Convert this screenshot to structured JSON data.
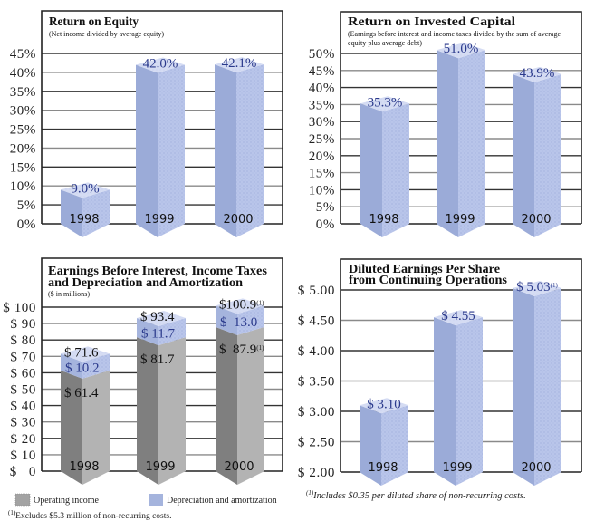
{
  "chart_data": [
    {
      "type": "bar",
      "title": [
        "Return on Equity"
      ],
      "subtitle": [
        "(Net income divided by average equity)"
      ],
      "xlabel": "",
      "ylabel": "",
      "categories": [
        "1998",
        "1999",
        "2000"
      ],
      "values": [
        9.0,
        42.0,
        42.1
      ],
      "value_labels": [
        "9.0%",
        "42.0%",
        "42.1%"
      ],
      "value_marks": [
        "",
        "",
        ""
      ],
      "ylim": [
        0,
        45
      ],
      "yticks": [
        0,
        5,
        10,
        15,
        20,
        25,
        30,
        35,
        40,
        45
      ],
      "ytick_labels": [
        "0%",
        "5%",
        "10%",
        "15%",
        "20%",
        "25%",
        "30%",
        "35%",
        "40%",
        "45%"
      ],
      "grid": true,
      "color": "#9babd8"
    },
    {
      "type": "bar",
      "title": [
        "Return on Invested Capital"
      ],
      "subtitle": [
        "(Earnings before interest and income taxes divided by the sum of average",
        "equity plus average debt)"
      ],
      "xlabel": "",
      "ylabel": "",
      "categories": [
        "1998",
        "1999",
        "2000"
      ],
      "values": [
        35.3,
        51.0,
        43.9
      ],
      "value_labels": [
        "35.3%",
        "51.0%",
        "43.9%"
      ],
      "value_marks": [
        "",
        "",
        ""
      ],
      "ylim": [
        0,
        50
      ],
      "yticks": [
        0,
        5,
        10,
        15,
        20,
        25,
        30,
        35,
        40,
        45,
        50
      ],
      "ytick_labels": [
        "0%",
        "5%",
        "10%",
        "15%",
        "20%",
        "25%",
        "30%",
        "35%",
        "40%",
        "45%",
        "50%"
      ],
      "grid": true,
      "color": "#9babd8"
    },
    {
      "type": "bar",
      "stacked": true,
      "title": [
        "Earnings Before Interest, Income Taxes",
        "and Depreciation and Amortization"
      ],
      "subtitle": [
        "($ in millions)"
      ],
      "xlabel": "",
      "ylabel": "",
      "categories": [
        "1998",
        "1999",
        "2000"
      ],
      "series": [
        {
          "name": "Operating income",
          "values": [
            61.4,
            81.7,
            87.9
          ],
          "labels": [
            "$ 61.4",
            "$ 81.7",
            "$  87.9"
          ],
          "marks": [
            "",
            "",
            "(1)"
          ],
          "color": "#a3a3a3"
        },
        {
          "name": "Depreciation and amortization",
          "values": [
            10.2,
            11.7,
            13.0
          ],
          "labels": [
            "$ 10.2",
            "$ 11.7",
            "$  13.0"
          ],
          "marks": [
            "",
            "",
            ""
          ],
          "color": "#a5b4dd"
        }
      ],
      "totals": [
        71.6,
        93.4,
        100.9
      ],
      "total_labels": [
        "$ 71.6",
        "$ 93.4",
        "$100.9"
      ],
      "total_marks": [
        "",
        "",
        "(1)"
      ],
      "ylim": [
        0,
        100
      ],
      "yticks": [
        0,
        10,
        20,
        30,
        40,
        50,
        60,
        70,
        80,
        90,
        100
      ],
      "ytick_labels": [
        "$   0",
        "$ 10",
        "$ 20",
        "$ 30",
        "$ 40",
        "$ 50",
        "$ 60",
        "$ 70",
        "$ 80",
        "$ 90",
        "$ 100"
      ],
      "grid": true,
      "legend": {
        "position": "bottom",
        "entries": [
          {
            "label": "Operating income",
            "color": "#a3a3a3"
          },
          {
            "label": "Depreciation and amortization",
            "color": "#a5b4dd"
          }
        ]
      },
      "footnote": {
        "mark": "(1)",
        "text": "Excludes $5.3 million of non-recurring costs."
      }
    },
    {
      "type": "bar",
      "title": [
        "Diluted Earnings Per Share",
        "from Continuing Operations"
      ],
      "subtitle": [],
      "xlabel": "",
      "ylabel": "",
      "categories": [
        "1998",
        "1999",
        "2000"
      ],
      "values": [
        3.1,
        4.55,
        5.03
      ],
      "value_labels": [
        "$ 3.10",
        "$ 4.55",
        "$ 5.03"
      ],
      "value_marks": [
        "",
        "",
        "(1)"
      ],
      "ylim": [
        2.0,
        5.0
      ],
      "yticks": [
        2.0,
        2.5,
        3.0,
        3.5,
        4.0,
        4.5,
        5.0
      ],
      "ytick_labels": [
        "$ 2.00",
        "$ 2.50",
        "$ 3.00",
        "$ 3.50",
        "$ 4.00",
        "$ 4.50",
        "$ 5.00"
      ],
      "grid": true,
      "color": "#9babd8",
      "footnote": {
        "mark": "(1)",
        "text": "Includes $0.35 per diluted share of non-recurring costs."
      }
    }
  ]
}
